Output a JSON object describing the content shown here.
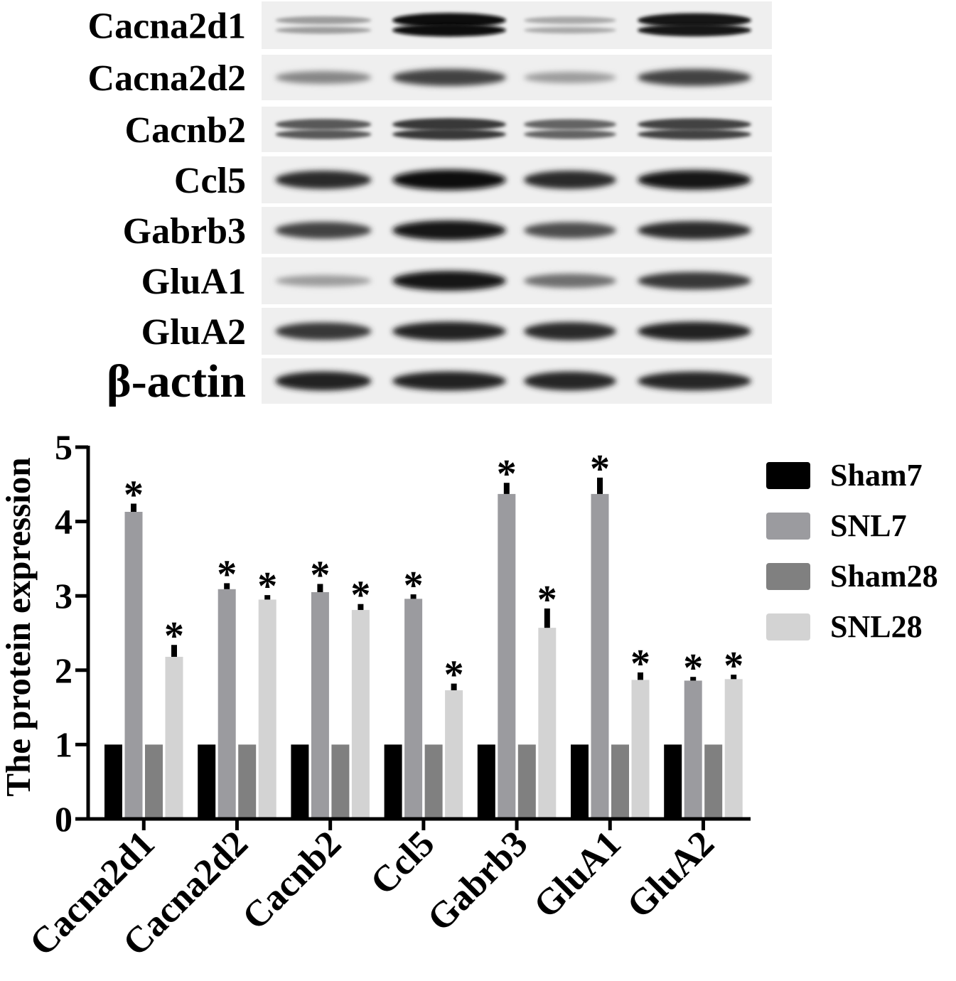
{
  "blot": {
    "rows": [
      {
        "label": "Cacna2d1",
        "intensity": [
          0.35,
          1.0,
          0.3,
          0.95
        ],
        "double_band": true
      },
      {
        "label": "Cacna2d2",
        "intensity": [
          0.45,
          0.75,
          0.35,
          0.75
        ],
        "double_band": false
      },
      {
        "label": "Cacnb2",
        "intensity": [
          0.65,
          0.8,
          0.6,
          0.75
        ],
        "double_band": true
      },
      {
        "label": "Ccl5",
        "intensity": [
          0.85,
          1.0,
          0.85,
          0.95
        ],
        "double_band": false
      },
      {
        "label": "Gabrb3",
        "intensity": [
          0.75,
          0.95,
          0.7,
          0.85
        ],
        "double_band": false
      },
      {
        "label": "GluA1",
        "intensity": [
          0.35,
          0.95,
          0.55,
          0.8
        ],
        "double_band": false
      },
      {
        "label": "GluA2",
        "intensity": [
          0.8,
          0.9,
          0.85,
          0.9
        ],
        "double_band": false
      },
      {
        "label": "β-actin",
        "intensity": [
          0.9,
          0.9,
          0.88,
          0.88
        ],
        "double_band": false
      }
    ]
  },
  "chart_data": {
    "type": "bar",
    "ylabel": "The protein expression",
    "xlabel": "",
    "ylim": [
      0,
      5
    ],
    "yticks": [
      "0",
      "1",
      "2",
      "3",
      "4",
      "5"
    ],
    "categories": [
      "Cacna2d1",
      "Cacna2d2",
      "Cacnb2",
      "Ccl5",
      "Gabrb3",
      "GluA1",
      "GluA2"
    ],
    "series": [
      {
        "name": "Sham7",
        "color": "#000000",
        "values": [
          1,
          1,
          1,
          1,
          1,
          1,
          1
        ],
        "errors": [
          0,
          0,
          0,
          0,
          0,
          0,
          0
        ],
        "significant": [
          false,
          false,
          false,
          false,
          false,
          false,
          false
        ]
      },
      {
        "name": "SNL7",
        "color": "#9b9b9f",
        "values": [
          4.13,
          3.09,
          3.05,
          2.96,
          4.37,
          4.37,
          1.86
        ],
        "errors": [
          0.11,
          0.08,
          0.11,
          0.06,
          0.15,
          0.22,
          0.05
        ],
        "significant": [
          true,
          true,
          true,
          true,
          true,
          true,
          true
        ]
      },
      {
        "name": "Sham28",
        "color": "#808080",
        "values": [
          1,
          1,
          1,
          1,
          1,
          1,
          1
        ],
        "errors": [
          0,
          0,
          0,
          0,
          0,
          0,
          0
        ],
        "significant": [
          false,
          false,
          false,
          false,
          false,
          false,
          false
        ]
      },
      {
        "name": "SNL28",
        "color": "#d3d3d3",
        "values": [
          2.18,
          2.95,
          2.81,
          1.73,
          2.57,
          1.87,
          1.88
        ],
        "errors": [
          0.16,
          0.06,
          0.08,
          0.09,
          0.26,
          0.1,
          0.06
        ],
        "significant": [
          true,
          true,
          true,
          true,
          true,
          true,
          true
        ]
      }
    ],
    "significance_marker": "*",
    "legend": {
      "placement": "right",
      "entries": [
        "Sham7",
        "SNL7",
        "Sham28",
        "SNL28"
      ]
    },
    "grid": false
  }
}
